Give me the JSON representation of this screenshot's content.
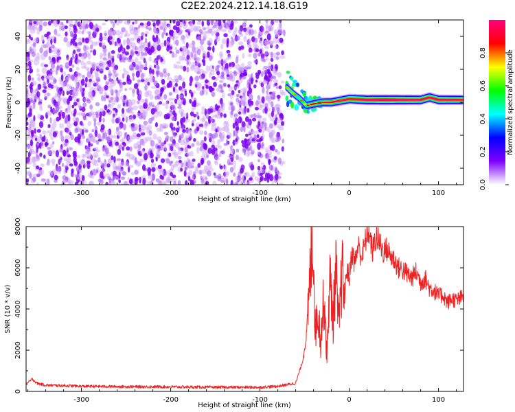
{
  "title": "C2E2.2024.212.14.18.G19",
  "chart_data": [
    {
      "type": "heatmap",
      "xlabel": "Height of straight line (km)",
      "ylabel": "Frequency (Hz)",
      "xlim": [
        -362,
        128
      ],
      "ylim": [
        -50,
        50
      ],
      "xticks": [
        -300,
        -200,
        -100,
        0,
        100
      ],
      "yticks": [
        -40,
        -20,
        0,
        20,
        40
      ],
      "colorbar": {
        "label": "Normalized spectral amplitude",
        "range": [
          0,
          1
        ],
        "ticks": [
          0.0,
          0.2,
          0.4,
          0.6,
          0.8
        ],
        "colors": [
          "#ffffff",
          "#8000ff",
          "#0000ff",
          "#00ffff",
          "#00ff00",
          "#ffff00",
          "#ff0000",
          "#ff0080"
        ]
      },
      "noise_region": {
        "x_range": [
          -362,
          -70
        ],
        "freq_range": [
          -50,
          50
        ],
        "amplitude": 0.05
      },
      "signal_ridge": [
        {
          "x": -70,
          "f": 9,
          "a": 0.45
        },
        {
          "x": -62,
          "f": 5,
          "a": 0.5
        },
        {
          "x": -55,
          "f": 2,
          "a": 0.55
        },
        {
          "x": -48,
          "f": -2,
          "a": 0.6
        },
        {
          "x": -40,
          "f": -1,
          "a": 0.65
        },
        {
          "x": -30,
          "f": 0,
          "a": 0.7
        },
        {
          "x": -20,
          "f": 0,
          "a": 0.75
        },
        {
          "x": -10,
          "f": 1,
          "a": 0.8
        },
        {
          "x": 0,
          "f": 2,
          "a": 0.85
        },
        {
          "x": 20,
          "f": 1.5,
          "a": 0.9
        },
        {
          "x": 40,
          "f": 1.5,
          "a": 0.95
        },
        {
          "x": 60,
          "f": 1.5,
          "a": 0.9
        },
        {
          "x": 80,
          "f": 1.5,
          "a": 0.85
        },
        {
          "x": 90,
          "f": 3,
          "a": 0.85
        },
        {
          "x": 100,
          "f": 1.5,
          "a": 0.85
        },
        {
          "x": 128,
          "f": 1.5,
          "a": 0.8
        }
      ]
    },
    {
      "type": "line",
      "xlabel": "Height of straight line (km)",
      "ylabel": "SNR (10 * v/v)",
      "xlim": [
        -362,
        128
      ],
      "ylim": [
        0,
        8000
      ],
      "xticks": [
        -300,
        -200,
        -100,
        0,
        100
      ],
      "yticks": [
        0,
        2000,
        4000,
        6000,
        8000
      ],
      "color": "#ee2222",
      "series": [
        {
          "x": [
            -362,
            -355,
            -350,
            -340,
            -320,
            -300,
            -250,
            -200,
            -150,
            -100,
            -80,
            -60,
            -52,
            -47,
            -44,
            -41,
            -38,
            -35,
            -32,
            -28,
            -25,
            -22,
            -18,
            -15,
            -12,
            -8,
            -5,
            -3,
            0,
            3,
            6,
            10,
            14,
            18,
            22,
            26,
            30,
            34,
            38,
            42,
            46,
            50,
            55,
            60,
            65,
            70,
            75,
            80,
            85,
            90,
            95,
            100,
            105,
            110,
            115,
            120,
            128
          ],
          "y": [
            350,
            600,
            400,
            300,
            280,
            250,
            230,
            220,
            200,
            200,
            250,
            400,
            1500,
            3000,
            5500,
            8000,
            3000,
            4000,
            2500,
            4800,
            1500,
            5500,
            3500,
            6000,
            3000,
            5800,
            4500,
            6000,
            5500,
            6800,
            6200,
            7100,
            6500,
            7300,
            7800,
            6800,
            7500,
            7200,
            6800,
            6900,
            6600,
            6400,
            6000,
            5900,
            5700,
            5500,
            5800,
            5300,
            5500,
            5000,
            4900,
            4600,
            4700,
            4300,
            4500,
            4400,
            4600
          ]
        }
      ]
    }
  ]
}
